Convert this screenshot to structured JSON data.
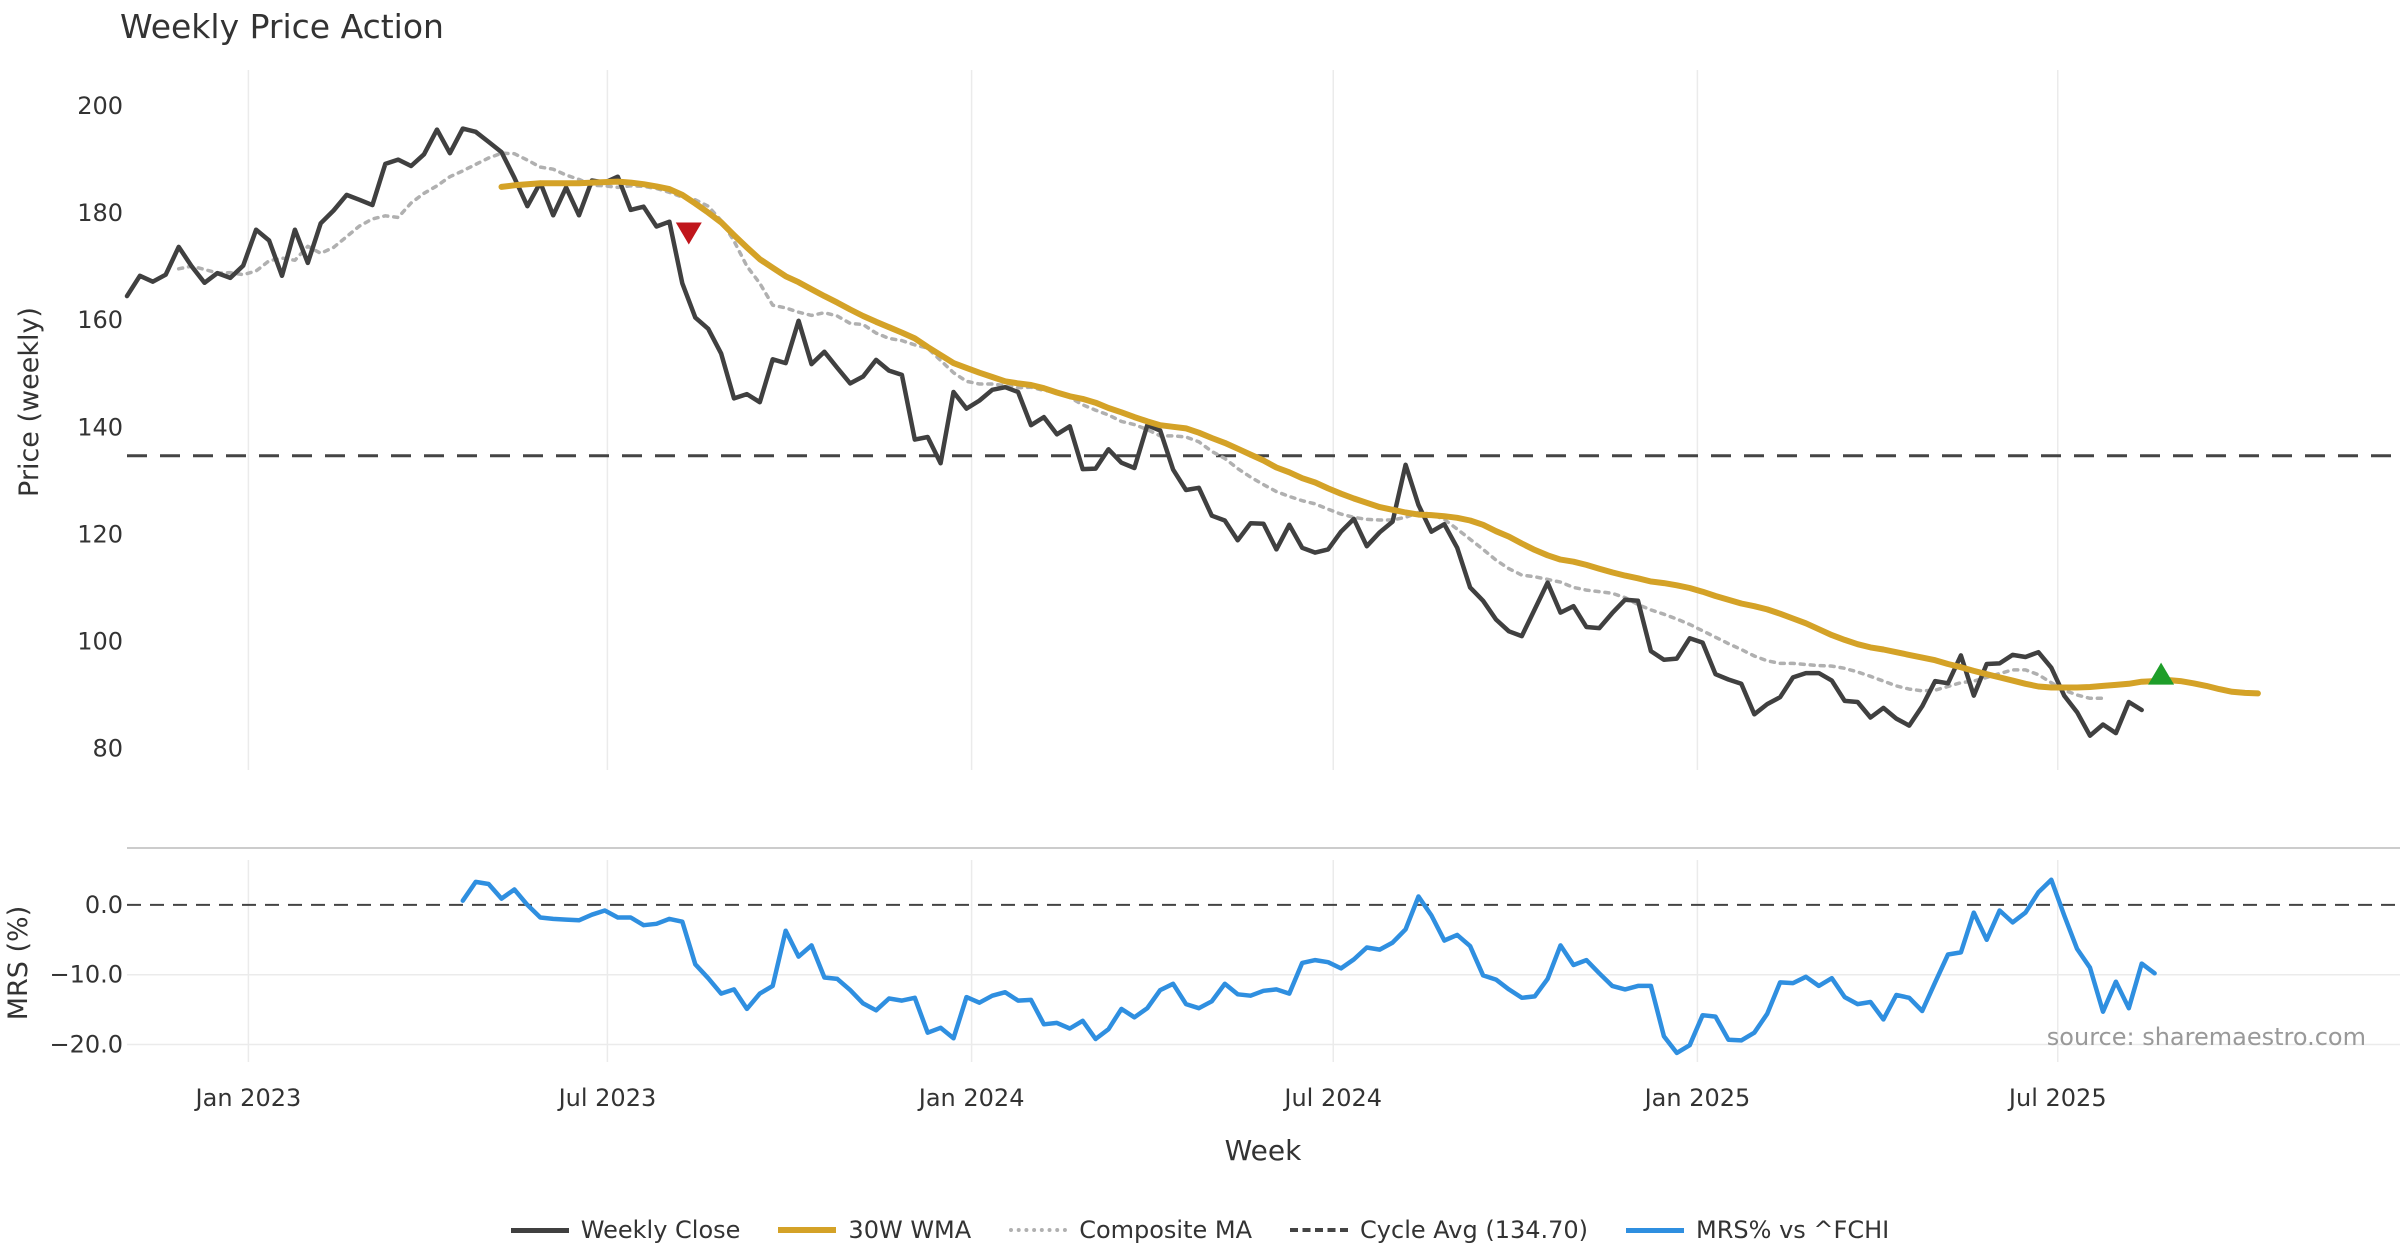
{
  "chart_data": [
    {
      "type": "line",
      "title": "Weekly Price Action",
      "ylabel": "Price (weekly)",
      "xlabel": "Week",
      "ylim": [
        76,
        203
      ],
      "yticks": [
        80,
        100,
        120,
        140,
        160,
        180,
        200
      ],
      "xrange": [
        0,
        176
      ],
      "xticks": [
        {
          "label": "Jan 2023",
          "week": 9.4
        },
        {
          "label": "Jul 2023",
          "week": 37.2
        },
        {
          "label": "Jan 2024",
          "week": 65.4
        },
        {
          "label": "Jul 2024",
          "week": 93.4
        },
        {
          "label": "Jan 2025",
          "week": 121.6
        },
        {
          "label": "Jul 2025",
          "week": 149.5
        }
      ],
      "reference_line": {
        "label": "Cycle Avg (134.70)",
        "value": 134.7,
        "color": "#444444"
      },
      "series": [
        {
          "name": "Weekly Close",
          "color": "#404040",
          "start_week": 0,
          "values": [
            164.5,
            168.3,
            167.2,
            168.5,
            173.7,
            170.1,
            167,
            168.8,
            167.9,
            170.2,
            176.9,
            174.9,
            168.3,
            176.9,
            170.7,
            178.1,
            180.5,
            183.4,
            182.5,
            181.5,
            189.2,
            190,
            188.8,
            191,
            195.6,
            191.2,
            195.8,
            195.2,
            193.3,
            191.4,
            186.6,
            181.3,
            185.7,
            179.6,
            184.8,
            179.6,
            186.1,
            185.7,
            186.8,
            180.6,
            181.2,
            177.5,
            178.4,
            166.9,
            160.5,
            158.4,
            153.8,
            145.4,
            146.2,
            144.7,
            152.7,
            152,
            159.9,
            151.8,
            154.1,
            151.1,
            148.2,
            149.5,
            152.6,
            150.6,
            149.8,
            137.7,
            138.2,
            133.3,
            146.6,
            143.5,
            145,
            147,
            147.5,
            146.6,
            140.4,
            141.9,
            138.7,
            140.2,
            132.2,
            132.3,
            135.9,
            133.4,
            132.4,
            140.4,
            139.4,
            132.1,
            128.3,
            128.7,
            123.5,
            122.6,
            118.9,
            122.1,
            122,
            117.2,
            121.8,
            117.5,
            116.6,
            117.2,
            120.5,
            122.9,
            117.8,
            120.4,
            122.4,
            133,
            125.5,
            120.5,
            121.9,
            117.5,
            110.1,
            107.6,
            104.1,
            101.9,
            101,
            106,
            111,
            105.4,
            106.6,
            102.7,
            102.5,
            105.3,
            107.8,
            107.6,
            98.2,
            96.6,
            96.8,
            100.6,
            99.8,
            93.9,
            92.9,
            92.1,
            86.4,
            88.3,
            89.6,
            93.3,
            94.1,
            94.1,
            92.7,
            88.9,
            88.7,
            85.8,
            87.6,
            85.6,
            84.3,
            87.9,
            92.6,
            92.2,
            97.4,
            89.9,
            95.8,
            95.9,
            97.5,
            97.1,
            98,
            95.1,
            89.9,
            86.8,
            82.4,
            84.5,
            82.9,
            88.7,
            87.2
          ]
        },
        {
          "name": "30W WMA",
          "color": "#d4a227",
          "start_week": 29,
          "values": [
            184.9,
            185.2,
            185.4,
            185.6,
            185.6,
            185.6,
            185.6,
            185.7,
            185.8,
            185.9,
            185.7,
            185.4,
            185,
            184.5,
            183.4,
            181.8,
            180.1,
            178.3,
            175.9,
            173.6,
            171.4,
            169.8,
            168.2,
            167.1,
            165.8,
            164.5,
            163.3,
            162,
            160.8,
            159.7,
            158.7,
            157.7,
            156.6,
            155,
            153.5,
            152,
            151.1,
            150.2,
            149.4,
            148.6,
            148.2,
            147.9,
            147.3,
            146.5,
            145.8,
            145.3,
            144.6,
            143.6,
            142.8,
            141.9,
            141.1,
            140.4,
            140.1,
            139.8,
            139,
            138,
            137.1,
            136,
            134.9,
            133.8,
            132.5,
            131.6,
            130.5,
            129.7,
            128.6,
            127.6,
            126.7,
            125.9,
            125.1,
            124.6,
            124.1,
            123.7,
            123.6,
            123.4,
            123.1,
            122.6,
            121.8,
            120.6,
            119.6,
            118.3,
            117.1,
            116.1,
            115.3,
            114.9,
            114.3,
            113.6,
            112.9,
            112.3,
            111.8,
            111.2,
            110.9,
            110.5,
            110,
            109.3,
            108.5,
            107.8,
            107.1,
            106.6,
            106,
            105.2,
            104.3,
            103.4,
            102.3,
            101.2,
            100.3,
            99.5,
            98.9,
            98.5,
            98,
            97.5,
            97,
            96.5,
            95.8,
            95.2,
            94.5,
            93.9,
            93.3,
            92.7,
            92.1,
            91.6,
            91.4,
            91.4,
            91.4,
            91.5,
            91.7,
            91.9,
            92.1,
            92.5,
            92.6,
            92.8,
            92.6,
            92.2,
            91.7,
            91.1,
            90.6,
            90.4,
            90.3
          ]
        },
        {
          "name": "Composite MA",
          "color": "#b0b0b0",
          "dashed": true,
          "start_week": 4,
          "values": [
            169.6,
            170.1,
            169.5,
            168.8,
            168.9,
            168.5,
            169.2,
            171.1,
            171.6,
            171.2,
            173.8,
            172.5,
            173.6,
            175.6,
            177.6,
            178.9,
            179.5,
            179.2,
            181.9,
            183.7,
            185.1,
            186.8,
            187.9,
            189.1,
            190.3,
            191.2,
            191.1,
            189.9,
            188.6,
            188.2,
            187.1,
            186.3,
            185.2,
            185.1,
            184.8,
            185.1,
            185,
            184.6,
            183.9,
            183,
            182.5,
            181.3,
            178.6,
            174.8,
            170.1,
            166.9,
            162.8,
            162.3,
            161.5,
            160.9,
            161.4,
            160.8,
            159.4,
            159.2,
            157.6,
            156.6,
            156.2,
            155.4,
            154.8,
            152.5,
            150.2,
            148.6,
            148.1,
            148.1,
            147.8,
            147.4,
            147.5,
            146.9,
            146.6,
            145.6,
            144.2,
            143.2,
            142.3,
            141.1,
            140.5,
            139.6,
            138.4,
            138.4,
            138.2,
            137.3,
            135.5,
            134.2,
            132.3,
            130.7,
            129.3,
            128,
            127.1,
            126.3,
            125.7,
            124.7,
            123.8,
            123.2,
            122.8,
            122.7,
            122.7,
            123.2,
            124.1,
            123.8,
            122.8,
            121,
            119.1,
            117.2,
            115.2,
            113.6,
            112.4,
            112.1,
            111.6,
            111.1,
            110.1,
            109.6,
            109.3,
            109,
            108.2,
            106.9,
            105.9,
            105.1,
            104.2,
            103.2,
            102,
            100.8,
            99.6,
            98.5,
            97.3,
            96.4,
            95.9,
            95.9,
            95.7,
            95.5,
            95.4,
            95,
            94.3,
            93.5,
            92.6,
            91.7,
            91.1,
            90.8,
            90.9,
            91.6,
            92.3,
            92.6,
            93.3,
            94,
            94.7,
            94.7,
            93.8,
            92.3,
            90.9,
            90,
            89.4,
            89.4
          ]
        }
      ],
      "markers": [
        {
          "type": "sell",
          "shape": "triangle-down",
          "week": 43.5,
          "value": 176.2,
          "color": "#c0161c"
        },
        {
          "type": "buy",
          "shape": "triangle-up",
          "week": 157.5,
          "value": 94,
          "color": "#1e9e2a"
        }
      ],
      "source_note": "source: sharemaestro.com"
    },
    {
      "type": "line",
      "ylabel": "MRS (%)",
      "ylim": [
        -22.5,
        5
      ],
      "yticks": [
        0,
        -10,
        -20
      ],
      "ytick_labels": [
        "0.0",
        "−10.0",
        "−20.0"
      ],
      "reference_line": {
        "value": 0,
        "dashed": true,
        "color": "#444444"
      },
      "series": [
        {
          "name": "MRS% vs ^FCHI",
          "color": "#2f8fe0",
          "start_week": 26,
          "values": [
            0.6,
            3.3,
            3,
            0.9,
            2.2,
            0,
            -1.8,
            -2.0,
            -2.1,
            -2.2,
            -1.4,
            -0.8,
            -1.8,
            -1.8,
            -2.9,
            -2.7,
            -2,
            -2.4,
            -8.5,
            -10.5,
            -12.7,
            -12.1,
            -14.9,
            -12.7,
            -11.6,
            -3.7,
            -7.4,
            -5.8,
            -10.4,
            -10.6,
            -12.2,
            -14.1,
            -15.1,
            -13.4,
            -13.7,
            -13.3,
            -18.3,
            -17.6,
            -19.1,
            -13.2,
            -14,
            -13,
            -12.5,
            -13.7,
            -13.6,
            -17.1,
            -16.9,
            -17.7,
            -16.6,
            -19.2,
            -17.8,
            -14.9,
            -16.1,
            -14.8,
            -12.2,
            -11.3,
            -14.2,
            -14.8,
            -13.8,
            -11.3,
            -12.8,
            -13,
            -12.3,
            -12.1,
            -12.7,
            -8.3,
            -7.9,
            -8.2,
            -9.1,
            -7.8,
            -6.1,
            -6.4,
            -5.4,
            -3.5,
            1.2,
            -1.5,
            -5.1,
            -4.3,
            -5.9,
            -10.1,
            -10.7,
            -12.1,
            -13.3,
            -13.1,
            -10.6,
            -5.8,
            -8.6,
            -7.9,
            -9.8,
            -11.6,
            -12.1,
            -11.6,
            -11.6,
            -18.8,
            -21.2,
            -20.1,
            -15.8,
            -16,
            -19.3,
            -19.4,
            -18.3,
            -15.6,
            -11.1,
            -11.2,
            -10.3,
            -11.6,
            -10.5,
            -13.2,
            -14.2,
            -13.9,
            -16.4,
            -12.9,
            -13.3,
            -15.2,
            -11.1,
            -7.1,
            -6.8,
            -1.1,
            -5,
            -0.8,
            -2.5,
            -1.1,
            1.8,
            3.6,
            -1.5,
            -6.3,
            -9,
            -15.3,
            -11,
            -14.8,
            -8.4,
            -9.8
          ]
        }
      ]
    }
  ],
  "legend": {
    "items": [
      {
        "label": "Weekly Close",
        "color": "#404040",
        "style": "solid"
      },
      {
        "label": "30W WMA",
        "color": "#d4a227",
        "style": "solid"
      },
      {
        "label": "Composite MA",
        "color": "#b0b0b0",
        "style": "dotted"
      },
      {
        "label": "Cycle Avg (134.70)",
        "color": "#444444",
        "style": "dashed"
      },
      {
        "label": "MRS% vs ^FCHI",
        "color": "#2f8fe0",
        "style": "solid"
      }
    ]
  }
}
